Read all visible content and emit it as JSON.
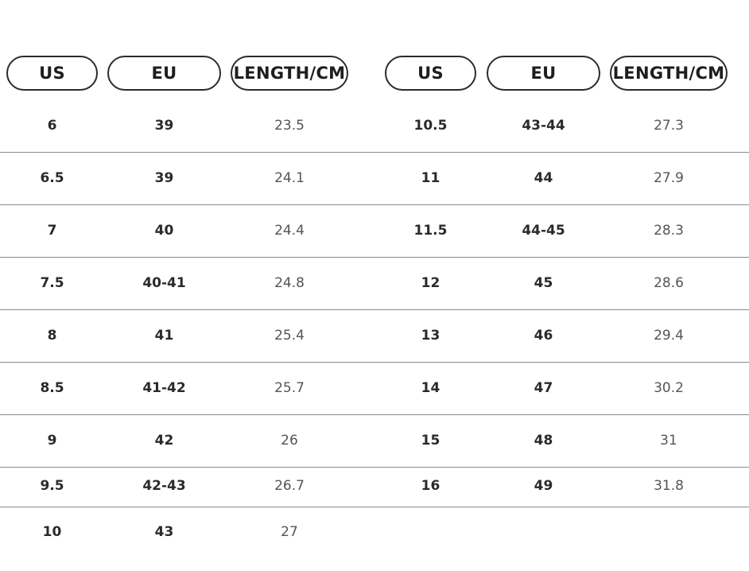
{
  "left_table": {
    "headers": [
      "US",
      "EU",
      "LENGTH/CM"
    ],
    "rows": [
      [
        "6",
        "39",
        "23.5"
      ],
      [
        "6.5",
        "39",
        "24.1"
      ],
      [
        "7",
        "40",
        "24.4"
      ],
      [
        "7.5",
        "40-41",
        "24.8"
      ],
      [
        "8",
        "41",
        "25.4"
      ],
      [
        "8.5",
        "41-42",
        "25.7"
      ],
      [
        "9",
        "42",
        "26"
      ],
      [
        "9.5",
        "42-43",
        "26.7"
      ],
      [
        "10",
        "43",
        "27"
      ]
    ]
  },
  "right_table": {
    "headers": [
      "US",
      "EU",
      "LENGTH/CM"
    ],
    "rows": [
      [
        "10.5",
        "43-44",
        "27.3"
      ],
      [
        "11",
        "44",
        "27.9"
      ],
      [
        "11.5",
        "44-45",
        "28.3"
      ],
      [
        "12",
        "45",
        "28.6"
      ],
      [
        "13",
        "46",
        "29.4"
      ],
      [
        "14",
        "47",
        "30.2"
      ],
      [
        "15",
        "48",
        "31"
      ],
      [
        "16",
        "49",
        "31.8"
      ]
    ]
  },
  "colors": {
    "border": "#2b2b2b",
    "divider": "#8a8a8a",
    "text": "#222222",
    "light_text": "#555555"
  }
}
